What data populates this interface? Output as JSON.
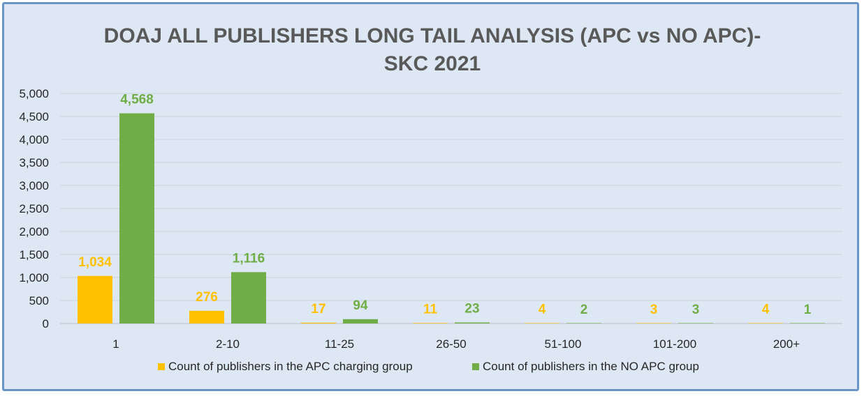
{
  "chart_data": {
    "type": "bar",
    "title_lines": [
      "DOAJ ALL PUBLISHERS LONG TAIL ANALYSIS (APC vs NO APC)-",
      "SKC 2021"
    ],
    "categories": [
      "1",
      "2-10",
      "11-25",
      "26-50",
      "51-100",
      "101-200",
      "200+"
    ],
    "series": [
      {
        "name": "Count of publishers in the APC charging group",
        "color": "#ffc000",
        "values": [
          1034,
          276,
          17,
          11,
          4,
          3,
          4
        ],
        "labels": [
          "1,034",
          "276",
          "17",
          "11",
          "4",
          "3",
          "4"
        ]
      },
      {
        "name": "Count of publishers in the NO APC group",
        "color": "#70ad47",
        "values": [
          4568,
          1116,
          94,
          23,
          2,
          3,
          1
        ],
        "labels": [
          "4,568",
          "1,116",
          "94",
          "23",
          "2",
          "3",
          "1"
        ]
      }
    ],
    "ylim": [
      0,
      5000
    ],
    "yticks": [
      0,
      500,
      1000,
      1500,
      2000,
      2500,
      3000,
      3500,
      4000,
      4500,
      5000
    ],
    "ytick_labels": [
      "0",
      "500",
      "1,000",
      "1,500",
      "2,000",
      "2,500",
      "3,000",
      "3,500",
      "4,000",
      "4,500",
      "5,000"
    ],
    "grid": true,
    "legend_position": "bottom",
    "xlabel": "",
    "ylabel": ""
  }
}
